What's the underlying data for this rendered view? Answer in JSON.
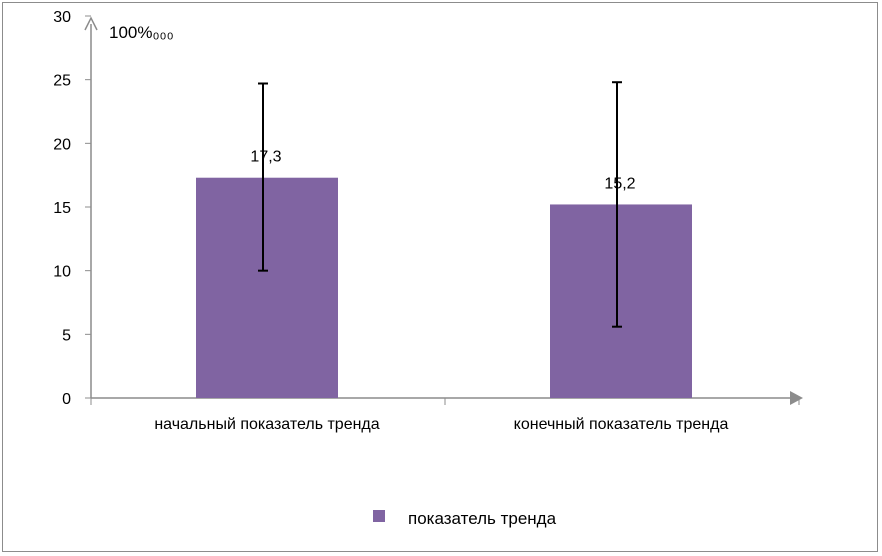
{
  "chart_data": {
    "type": "bar",
    "title": "",
    "ylabel": "100%₀₀₀",
    "xlabel": "",
    "ylim": [
      0,
      30
    ],
    "yticks": [
      0,
      5,
      10,
      15,
      20,
      25,
      30
    ],
    "categories": [
      "начальный показатель тренда",
      "конечный показатель тренда"
    ],
    "series": [
      {
        "name": "показатель тренда",
        "color": "#8064a2",
        "values": [
          17.3,
          15.2
        ],
        "value_labels": [
          "17,3",
          "15,2"
        ],
        "error_bars": [
          {
            "low": 10.0,
            "high": 24.7
          },
          {
            "low": 5.6,
            "high": 24.8
          }
        ]
      }
    ],
    "legend": {
      "position": "bottom",
      "entries": [
        "показатель тренда"
      ]
    },
    "grid": false
  }
}
